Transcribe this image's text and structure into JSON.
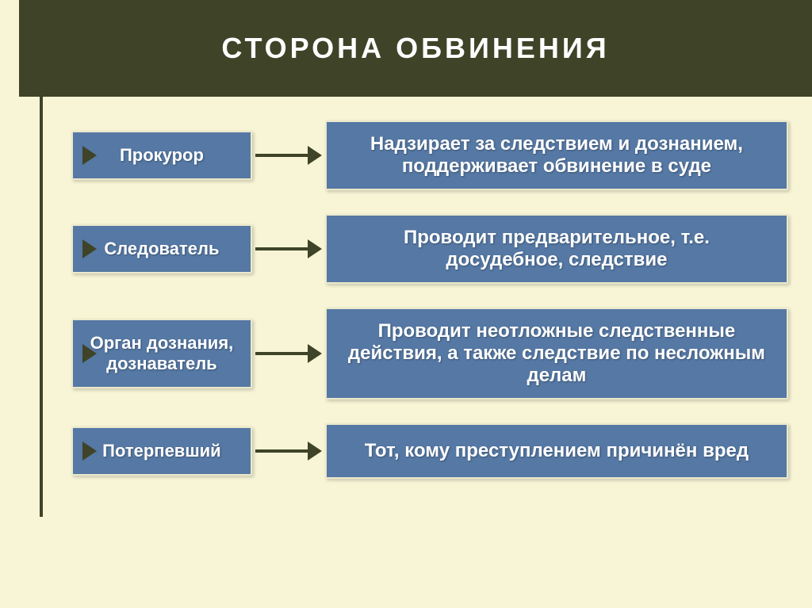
{
  "title": "СТОРОНА ОБВИНЕНИЯ",
  "colors": {
    "header_bg": "#3f4428",
    "header_text": "#ffffff",
    "slide_bg": "#f7f5d6",
    "box_bg": "#5578a4",
    "box_text": "#ffffff",
    "box_border": "#ebe9cb",
    "arrow": "#3f4428"
  },
  "typography": {
    "title_fontsize": 36,
    "title_letterspacing": 4,
    "left_fontsize": 22,
    "right_fontsize": 24,
    "font_family": "Arial"
  },
  "layout": {
    "left_box_width": 230,
    "right_box_width": 590,
    "connector_width": 70,
    "row_gap": 30,
    "vertical_line_height": 560
  },
  "rows": [
    {
      "left": "Прокурор",
      "right": "Надзирает за следствием и дознанием, поддерживает обвинение в суде"
    },
    {
      "left": "Следователь",
      "right": "Проводит предварительное, т.е. досудебное, следствие"
    },
    {
      "left": "Орган дознания, дознаватель",
      "right": "Проводит неотложные следственные действия, а также следствие по несложным делам"
    },
    {
      "left": "Потерпевший",
      "right": "Тот, кому преступлением причинён вред"
    }
  ]
}
